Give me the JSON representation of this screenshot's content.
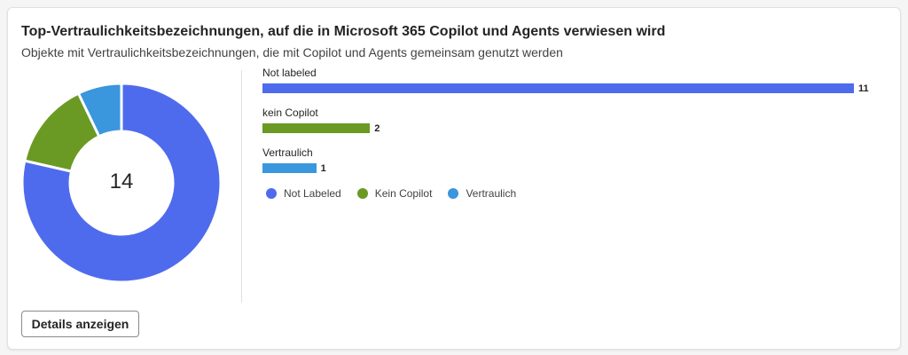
{
  "card": {
    "title": "Top-Vertraulichkeitsbezeichnungen, auf die in Microsoft 365 Copilot und Agents verwiesen wird",
    "subtitle": "Objekte mit Vertraulichkeitsbezeichnungen, die mit Copilot und Agents gemeinsam genutzt werden",
    "details_button": "Details anzeigen"
  },
  "colors": {
    "not_labeled": "#4f6bed",
    "kein_copilot": "#6a9a23",
    "vertraulich": "#3a96dd"
  },
  "chart_data": [
    {
      "type": "pie",
      "center_label": "14",
      "categories": [
        "Not Labeled",
        "Kein Copilot",
        "Vertraulich"
      ],
      "values": [
        11,
        2,
        1
      ]
    },
    {
      "type": "bar",
      "categories": [
        "Not labeled",
        "kein Copilot",
        "Vertraulich"
      ],
      "values": [
        11,
        2,
        1
      ],
      "legend": [
        "Not Labeled",
        "Kein Copilot",
        "Vertraulich"
      ],
      "legend_position": "bottom-left"
    }
  ]
}
